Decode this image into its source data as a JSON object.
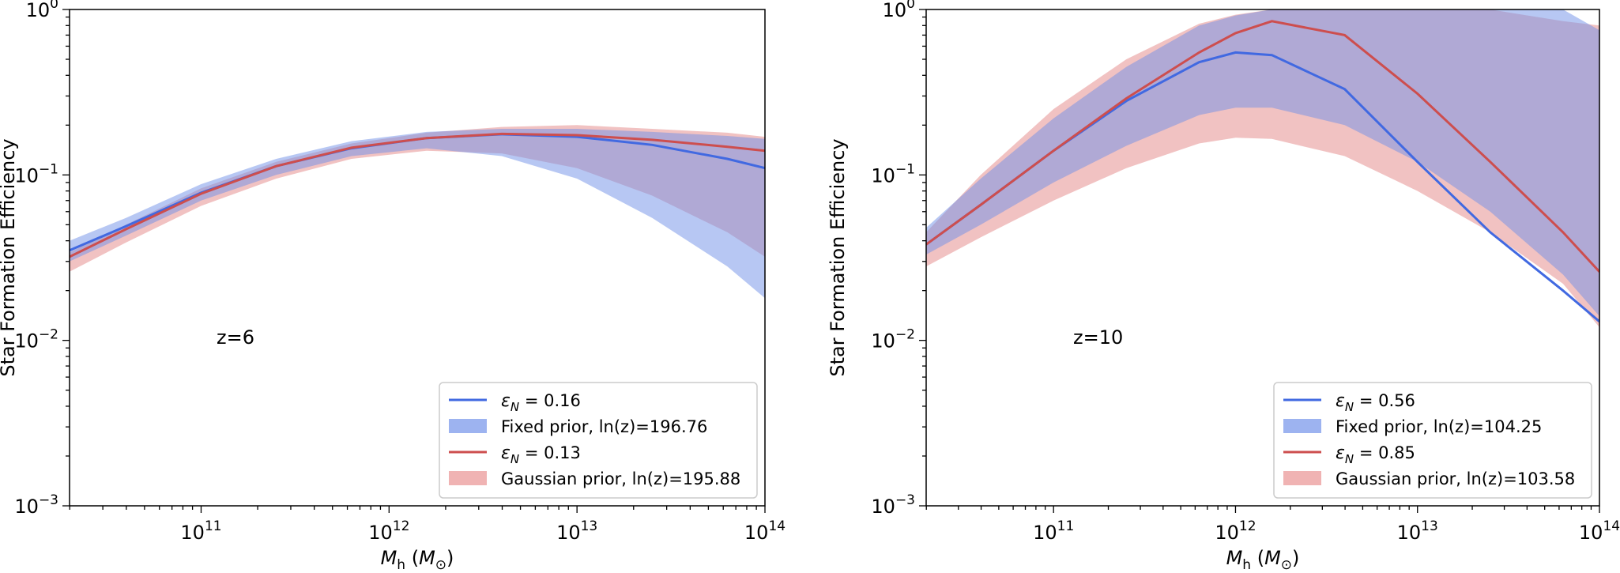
{
  "chart_data": [
    {
      "type": "line",
      "panel": "left",
      "annotation": "z=6",
      "ylabel": "Star Formation Efficiency",
      "xlabel": {
        "base": "M",
        "sub": "h",
        "unit_base": "M",
        "unit_sub": "⊙"
      },
      "xscale": "log",
      "yscale": "log",
      "xlim_exp": [
        10.3,
        14
      ],
      "ylim_exp": [
        -3,
        0
      ],
      "x_ticks": [
        {
          "base": "10",
          "exp": "11",
          "v": 11
        },
        {
          "base": "10",
          "exp": "12",
          "v": 12
        },
        {
          "base": "10",
          "exp": "13",
          "v": 13
        },
        {
          "base": "10",
          "exp": "14",
          "v": 14
        }
      ],
      "y_ticks": [
        {
          "base": "10",
          "exp": "−3",
          "v": -3
        },
        {
          "base": "10",
          "exp": "−2",
          "v": -2
        },
        {
          "base": "10",
          "exp": "−1",
          "v": -1
        },
        {
          "base": "10",
          "exp": "0",
          "v": 0
        }
      ],
      "legend": {
        "position": "lower-right",
        "entries": [
          {
            "kind": "line",
            "color": "#4169e1",
            "label": "= 0.16"
          },
          {
            "kind": "patch",
            "color": "#9db3f0",
            "label": "Fixed prior, ln(z)=196.76"
          },
          {
            "kind": "line",
            "color": "#cd4e4e",
            "label": "= 0.13"
          },
          {
            "kind": "patch",
            "color": "#f0b3b3",
            "label": "Gaussian prior, ln(z)=195.88"
          }
        ]
      },
      "series": [
        {
          "name": "Gaussian prior band",
          "kind": "band",
          "color": "#e89a9a",
          "opacity": 0.6,
          "x": [
            10.3,
            10.6,
            11.0,
            11.4,
            11.8,
            12.2,
            12.6,
            13.0,
            13.4,
            13.8,
            14.0
          ],
          "upper": [
            0.034,
            0.05,
            0.083,
            0.12,
            0.155,
            0.18,
            0.195,
            0.2,
            0.19,
            0.18,
            0.17
          ],
          "lower": [
            0.026,
            0.039,
            0.065,
            0.095,
            0.125,
            0.14,
            0.135,
            0.11,
            0.075,
            0.045,
            0.032
          ]
        },
        {
          "name": "Fixed prior band",
          "kind": "band",
          "color": "#6f8fe8",
          "opacity": 0.5,
          "x": [
            10.3,
            10.6,
            11.0,
            11.4,
            11.8,
            12.2,
            12.6,
            13.0,
            13.4,
            13.8,
            14.0
          ],
          "upper": [
            0.04,
            0.055,
            0.088,
            0.125,
            0.16,
            0.182,
            0.19,
            0.19,
            0.182,
            0.172,
            0.165
          ],
          "lower": [
            0.03,
            0.043,
            0.07,
            0.1,
            0.13,
            0.145,
            0.13,
            0.095,
            0.055,
            0.028,
            0.018
          ]
        },
        {
          "name": "ε_N = 0.16 (fixed)",
          "kind": "line",
          "color": "#4169e1",
          "x": [
            10.3,
            10.6,
            11.0,
            11.4,
            11.8,
            12.2,
            12.6,
            13.0,
            13.4,
            13.8,
            14.0
          ],
          "y": [
            0.035,
            0.049,
            0.078,
            0.113,
            0.145,
            0.167,
            0.176,
            0.17,
            0.152,
            0.125,
            0.11
          ]
        },
        {
          "name": "ε_N = 0.13 (gaussian)",
          "kind": "line",
          "color": "#cd4e4e",
          "x": [
            10.3,
            10.6,
            11.0,
            11.4,
            11.8,
            12.2,
            12.6,
            13.0,
            13.4,
            13.8,
            14.0
          ],
          "y": [
            0.032,
            0.047,
            0.077,
            0.113,
            0.146,
            0.167,
            0.177,
            0.174,
            0.163,
            0.148,
            0.14
          ]
        }
      ]
    },
    {
      "type": "line",
      "panel": "right",
      "annotation": "z=10",
      "ylabel": "Star Formation Efficiency",
      "xlabel": {
        "base": "M",
        "sub": "h",
        "unit_base": "M",
        "unit_sub": "⊙"
      },
      "xscale": "log",
      "yscale": "log",
      "xlim_exp": [
        10.3,
        14
      ],
      "ylim_exp": [
        -3,
        0
      ],
      "x_ticks": [
        {
          "base": "10",
          "exp": "11",
          "v": 11
        },
        {
          "base": "10",
          "exp": "12",
          "v": 12
        },
        {
          "base": "10",
          "exp": "13",
          "v": 13
        },
        {
          "base": "10",
          "exp": "14",
          "v": 14
        }
      ],
      "y_ticks": [
        {
          "base": "10",
          "exp": "−3",
          "v": -3
        },
        {
          "base": "10",
          "exp": "−2",
          "v": -2
        },
        {
          "base": "10",
          "exp": "−1",
          "v": -1
        },
        {
          "base": "10",
          "exp": "0",
          "v": 0
        }
      ],
      "legend": {
        "position": "lower-right",
        "entries": [
          {
            "kind": "line",
            "color": "#4169e1",
            "label": "= 0.56"
          },
          {
            "kind": "patch",
            "color": "#9db3f0",
            "label": "Fixed prior, ln(z)=104.25"
          },
          {
            "kind": "line",
            "color": "#cd4e4e",
            "label": "= 0.85"
          },
          {
            "kind": "patch",
            "color": "#f0b3b3",
            "label": "Gaussian prior, ln(z)=103.58"
          }
        ]
      },
      "series": [
        {
          "name": "Gaussian prior band",
          "kind": "band",
          "color": "#e89a9a",
          "opacity": 0.6,
          "x": [
            10.3,
            10.6,
            11.0,
            11.4,
            11.8,
            12.0,
            12.2,
            12.6,
            13.0,
            13.4,
            13.8,
            14.0
          ],
          "upper": [
            0.045,
            0.1,
            0.25,
            0.5,
            0.82,
            0.93,
            1.0,
            1.0,
            1.0,
            1.0,
            0.85,
            0.8
          ],
          "lower": [
            0.028,
            0.042,
            0.07,
            0.11,
            0.155,
            0.168,
            0.165,
            0.13,
            0.08,
            0.045,
            0.022,
            0.012
          ]
        },
        {
          "name": "Fixed prior band",
          "kind": "band",
          "color": "#6f8fe8",
          "opacity": 0.5,
          "x": [
            10.3,
            10.6,
            11.0,
            11.4,
            11.8,
            12.0,
            12.2,
            12.6,
            13.0,
            13.4,
            13.8,
            14.0
          ],
          "upper": [
            0.048,
            0.095,
            0.22,
            0.45,
            0.8,
            0.92,
            1.0,
            1.0,
            1.0,
            1.0,
            1.0,
            0.75
          ],
          "lower": [
            0.033,
            0.05,
            0.09,
            0.15,
            0.23,
            0.255,
            0.255,
            0.2,
            0.12,
            0.06,
            0.025,
            0.014
          ]
        },
        {
          "name": "ε_N = 0.56 (fixed)",
          "kind": "line",
          "color": "#4169e1",
          "x": [
            10.3,
            10.6,
            11.0,
            11.4,
            11.8,
            12.0,
            12.2,
            12.6,
            13.0,
            13.4,
            13.8,
            14.0
          ],
          "y": [
            0.038,
            0.066,
            0.14,
            0.28,
            0.48,
            0.55,
            0.53,
            0.33,
            0.12,
            0.045,
            0.02,
            0.013
          ]
        },
        {
          "name": "ε_N = 0.85 (gaussian)",
          "kind": "line",
          "color": "#cd4e4e",
          "x": [
            10.3,
            10.6,
            11.0,
            11.4,
            11.8,
            12.0,
            12.2,
            12.6,
            13.0,
            13.4,
            13.8,
            14.0
          ],
          "y": [
            0.038,
            0.066,
            0.14,
            0.29,
            0.55,
            0.72,
            0.85,
            0.7,
            0.31,
            0.12,
            0.045,
            0.026
          ]
        }
      ]
    }
  ]
}
